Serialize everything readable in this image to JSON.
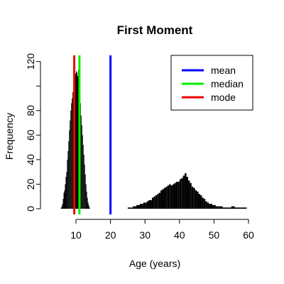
{
  "chart_data": {
    "type": "bar",
    "title": "First Moment",
    "xlabel": "Age (years)",
    "ylabel": "Frequency",
    "xlim": [
      3,
      60
    ],
    "ylim": [
      0,
      125
    ],
    "x_ticks": [
      10,
      20,
      30,
      40,
      50,
      60
    ],
    "y_ticks": [
      0,
      20,
      40,
      60,
      80,
      100,
      120
    ],
    "y_tick_labels": [
      "0",
      "20",
      "40",
      "60",
      "80",
      "",
      "120"
    ],
    "grid": false,
    "legend_position": "top-right",
    "histogram": {
      "bins": [
        [
          5.6,
          1
        ],
        [
          5.8,
          2
        ],
        [
          6.0,
          4
        ],
        [
          6.2,
          8
        ],
        [
          6.4,
          13
        ],
        [
          6.6,
          15
        ],
        [
          6.8,
          20
        ],
        [
          7.0,
          26
        ],
        [
          7.2,
          30
        ],
        [
          7.4,
          40
        ],
        [
          7.6,
          47
        ],
        [
          7.8,
          55
        ],
        [
          8.0,
          64
        ],
        [
          8.2,
          72
        ],
        [
          8.4,
          80
        ],
        [
          8.6,
          86
        ],
        [
          8.8,
          90
        ],
        [
          9.0,
          95
        ],
        [
          9.2,
          100
        ],
        [
          9.4,
          104
        ],
        [
          9.6,
          107
        ],
        [
          9.8,
          110
        ],
        [
          10.0,
          112
        ],
        [
          10.2,
          111
        ],
        [
          10.4,
          108
        ],
        [
          10.6,
          113
        ],
        [
          10.8,
          104
        ],
        [
          11.0,
          95
        ],
        [
          11.2,
          86
        ],
        [
          11.4,
          76
        ],
        [
          11.6,
          68
        ],
        [
          11.8,
          60
        ],
        [
          12.0,
          52
        ],
        [
          12.2,
          44
        ],
        [
          12.4,
          36
        ],
        [
          12.6,
          28
        ],
        [
          12.8,
          20
        ],
        [
          13.0,
          14
        ],
        [
          13.2,
          9
        ],
        [
          13.4,
          5
        ],
        [
          13.6,
          3
        ],
        [
          13.8,
          1
        ],
        [
          25.0,
          1
        ],
        [
          25.5,
          1
        ],
        [
          26.0,
          1
        ],
        [
          26.5,
          2
        ],
        [
          27.0,
          2
        ],
        [
          27.5,
          3
        ],
        [
          28.0,
          3
        ],
        [
          28.5,
          4
        ],
        [
          29.0,
          4
        ],
        [
          29.5,
          5
        ],
        [
          30.0,
          5
        ],
        [
          30.5,
          6
        ],
        [
          31.0,
          7
        ],
        [
          31.5,
          7
        ],
        [
          32.0,
          9
        ],
        [
          32.5,
          10
        ],
        [
          33.0,
          11
        ],
        [
          33.5,
          12
        ],
        [
          34.0,
          13
        ],
        [
          34.5,
          15
        ],
        [
          35.0,
          16
        ],
        [
          35.5,
          17
        ],
        [
          36.0,
          18
        ],
        [
          36.5,
          19
        ],
        [
          37.0,
          20
        ],
        [
          37.5,
          19
        ],
        [
          38.0,
          20
        ],
        [
          38.5,
          21
        ],
        [
          39.0,
          22
        ],
        [
          39.5,
          22
        ],
        [
          40.0,
          24
        ],
        [
          40.5,
          25
        ],
        [
          41.0,
          27
        ],
        [
          41.5,
          29
        ],
        [
          42.0,
          26
        ],
        [
          42.5,
          23
        ],
        [
          43.0,
          21
        ],
        [
          43.5,
          18
        ],
        [
          44.0,
          17
        ],
        [
          44.5,
          15
        ],
        [
          45.0,
          14
        ],
        [
          45.5,
          12
        ],
        [
          46.0,
          11
        ],
        [
          46.5,
          9
        ],
        [
          47.0,
          8
        ],
        [
          47.5,
          6
        ],
        [
          48.0,
          5
        ],
        [
          48.5,
          4
        ],
        [
          49.0,
          4
        ],
        [
          49.5,
          3
        ],
        [
          50.0,
          3
        ],
        [
          50.5,
          2
        ],
        [
          51.0,
          2
        ],
        [
          51.5,
          2
        ],
        [
          52.0,
          2
        ],
        [
          52.5,
          1
        ],
        [
          53.0,
          1
        ],
        [
          54.0,
          1
        ],
        [
          55.0,
          2
        ],
        [
          56.0,
          1
        ],
        [
          57.0,
          1
        ],
        [
          58.0,
          1
        ],
        [
          59.0,
          1
        ]
      ]
    },
    "reference_lines": [
      {
        "name": "mean",
        "x": 20,
        "color": "#0000ff"
      },
      {
        "name": "median",
        "x": 11,
        "color": "#00ee00"
      },
      {
        "name": "mode",
        "x": 9.5,
        "color": "#ee0000"
      }
    ],
    "legend": [
      {
        "label": "mean",
        "color": "#0000ff"
      },
      {
        "label": "median",
        "color": "#00ee00"
      },
      {
        "label": "mode",
        "color": "#ee0000"
      }
    ]
  }
}
